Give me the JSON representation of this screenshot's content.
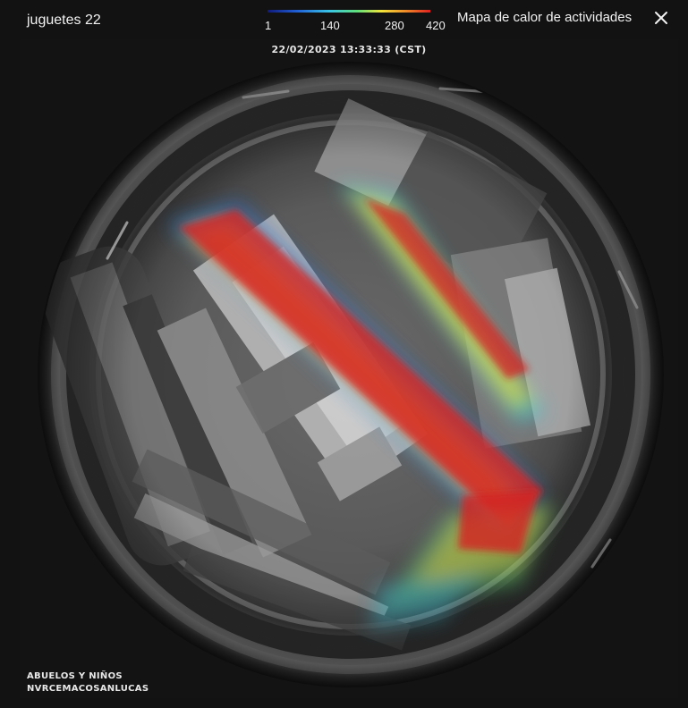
{
  "window": {
    "camera_name": "juguetes 22",
    "heatmap_title": "Mapa de calor de actividades",
    "close_icon": "close-icon"
  },
  "legend": {
    "ticks": [
      "1",
      "140",
      "280",
      "420"
    ],
    "gradient_colors": [
      "#101a7a",
      "#1f5fd6",
      "#39c6e6",
      "#5fe07a",
      "#f2e43a",
      "#f08a28",
      "#e02020"
    ]
  },
  "video": {
    "timestamp": "22/02/2023 13:33:33 (CST)",
    "overlay_line1": "ABUELOS Y NIÑOS",
    "overlay_line2": "NVRCEMACOSANLUCAS"
  }
}
